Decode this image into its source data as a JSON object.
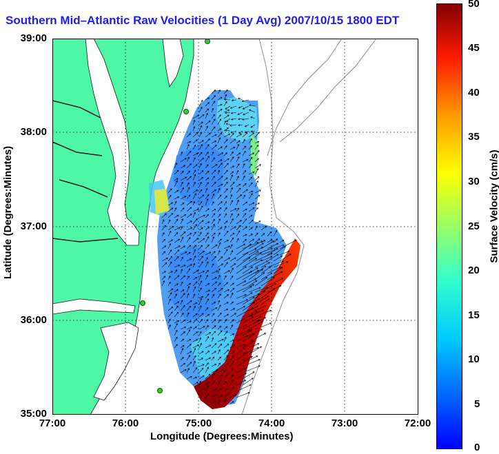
{
  "title": "Southern Mid–Atlantic Raw Velocities (1 Day Avg) 2007/10/15 1800 EDT",
  "xlabel": "Longitude (Degrees:Minutes)",
  "ylabel": "Latitude (Degrees:Minutes)",
  "colorbar_label": "Surface Velocity (cm/s)",
  "xticks": [
    "77:00",
    "76:00",
    "75:00",
    "74:00",
    "73:00",
    "72:00"
  ],
  "yticks": [
    "39:00",
    "38:00",
    "37:00",
    "36:00",
    "35:00"
  ],
  "cbticks": [
    "50",
    "45",
    "40",
    "35",
    "30",
    "25",
    "20",
    "15",
    "10",
    "5",
    "0"
  ],
  "colors": {
    "land": "#4ef7a5",
    "title": "#1c1cff",
    "arrow": "#000000",
    "station": "#2bd12b"
  },
  "chart_data": {
    "type": "heatmap",
    "x_range": [
      -77.0,
      -72.0
    ],
    "y_range": [
      35.0,
      39.0
    ],
    "color_range": [
      0,
      50
    ],
    "colormap": "jet",
    "grid": true
  }
}
